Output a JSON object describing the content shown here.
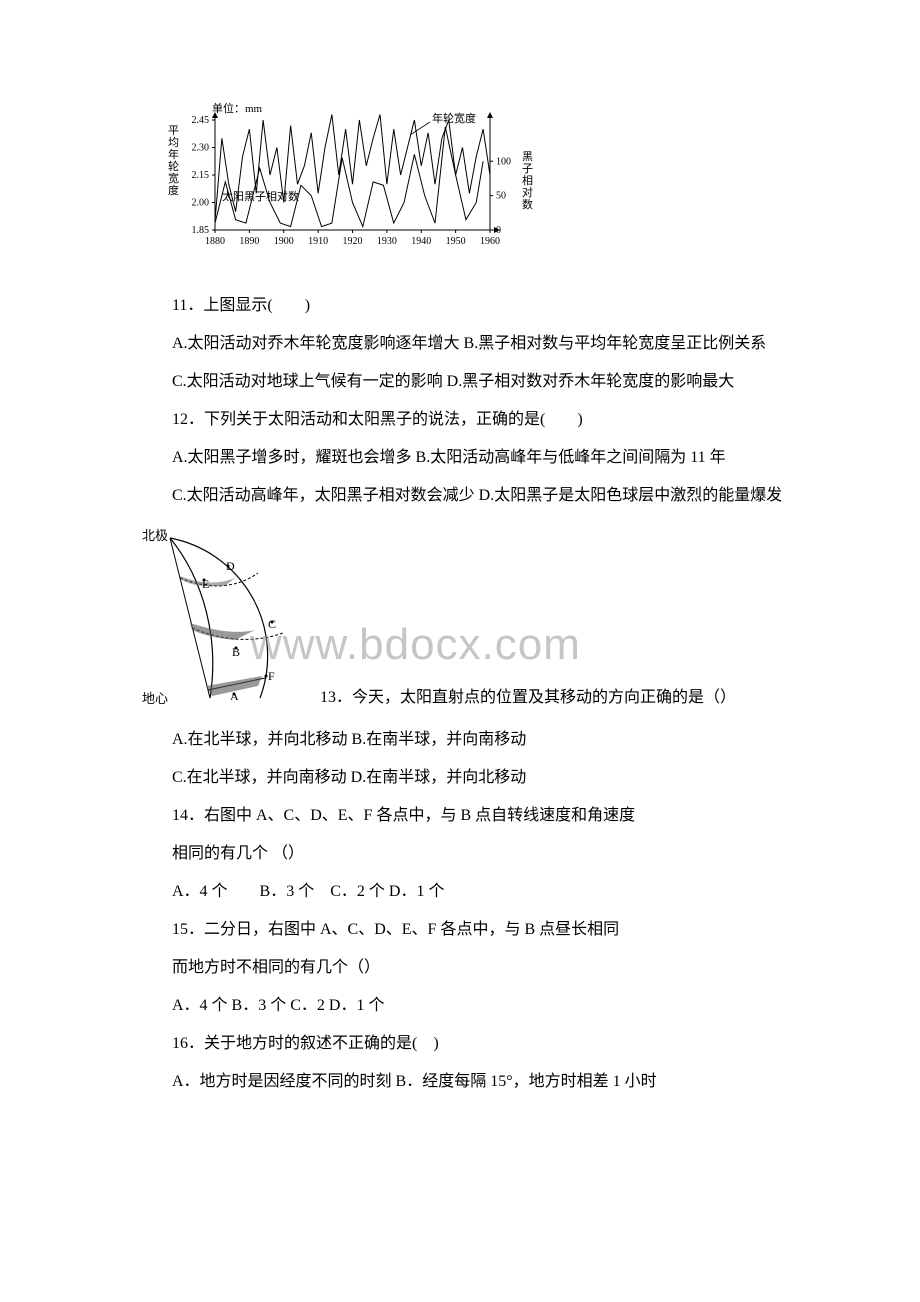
{
  "watermark": "www.bdocx.com",
  "chart": {
    "unit_label": "单位：mm",
    "y_axis_left_label": "平均年轮宽度",
    "y_axis_right_label": "黑子相对数",
    "y_left_ticks": [
      "2.45",
      "2.30",
      "2.15",
      "2.00",
      "1.85"
    ],
    "y_right_ticks": [
      "100",
      "50",
      "0"
    ],
    "x_ticks": [
      "1880",
      "1890",
      "1900",
      "1910",
      "1920",
      "1930",
      "1940",
      "1950",
      "1960"
    ],
    "label_ring": "年轮宽度",
    "label_sunspot": "太阳黑子相对数",
    "colors": {
      "axis": "#000000",
      "line": "#000000",
      "bg": "#ffffff"
    },
    "fontsize_axis": 10,
    "ring_series": [
      {
        "x": 1880,
        "y": 1.9
      },
      {
        "x": 1882,
        "y": 2.35
      },
      {
        "x": 1884,
        "y": 2.1
      },
      {
        "x": 1886,
        "y": 1.95
      },
      {
        "x": 1888,
        "y": 2.25
      },
      {
        "x": 1890,
        "y": 2.4
      },
      {
        "x": 1892,
        "y": 2.05
      },
      {
        "x": 1894,
        "y": 2.45
      },
      {
        "x": 1896,
        "y": 2.15
      },
      {
        "x": 1898,
        "y": 2.3
      },
      {
        "x": 1900,
        "y": 2.0
      },
      {
        "x": 1902,
        "y": 2.42
      },
      {
        "x": 1904,
        "y": 2.1
      },
      {
        "x": 1906,
        "y": 2.2
      },
      {
        "x": 1908,
        "y": 2.38
      },
      {
        "x": 1910,
        "y": 2.05
      },
      {
        "x": 1912,
        "y": 2.3
      },
      {
        "x": 1914,
        "y": 2.48
      },
      {
        "x": 1916,
        "y": 2.15
      },
      {
        "x": 1918,
        "y": 2.4
      },
      {
        "x": 1920,
        "y": 2.1
      },
      {
        "x": 1922,
        "y": 2.45
      },
      {
        "x": 1924,
        "y": 2.2
      },
      {
        "x": 1926,
        "y": 2.35
      },
      {
        "x": 1928,
        "y": 2.48
      },
      {
        "x": 1930,
        "y": 2.1
      },
      {
        "x": 1932,
        "y": 2.4
      },
      {
        "x": 1934,
        "y": 2.15
      },
      {
        "x": 1936,
        "y": 2.3
      },
      {
        "x": 1938,
        "y": 2.45
      },
      {
        "x": 1940,
        "y": 2.2
      },
      {
        "x": 1942,
        "y": 2.38
      },
      {
        "x": 1944,
        "y": 2.1
      },
      {
        "x": 1946,
        "y": 2.35
      },
      {
        "x": 1948,
        "y": 2.45
      },
      {
        "x": 1950,
        "y": 2.15
      },
      {
        "x": 1952,
        "y": 2.3
      },
      {
        "x": 1954,
        "y": 2.05
      },
      {
        "x": 1956,
        "y": 2.25
      },
      {
        "x": 1958,
        "y": 2.4
      },
      {
        "x": 1960,
        "y": 2.15
      }
    ],
    "sunspot_series": [
      {
        "x": 1880,
        "y": 10
      },
      {
        "x": 1883,
        "y": 70
      },
      {
        "x": 1886,
        "y": 15
      },
      {
        "x": 1889,
        "y": 10
      },
      {
        "x": 1893,
        "y": 90
      },
      {
        "x": 1896,
        "y": 40
      },
      {
        "x": 1899,
        "y": 10
      },
      {
        "x": 1902,
        "y": 5
      },
      {
        "x": 1905,
        "y": 65
      },
      {
        "x": 1908,
        "y": 50
      },
      {
        "x": 1911,
        "y": 5
      },
      {
        "x": 1914,
        "y": 10
      },
      {
        "x": 1917,
        "y": 105
      },
      {
        "x": 1920,
        "y": 40
      },
      {
        "x": 1923,
        "y": 5
      },
      {
        "x": 1926,
        "y": 70
      },
      {
        "x": 1929,
        "y": 65
      },
      {
        "x": 1932,
        "y": 10
      },
      {
        "x": 1935,
        "y": 40
      },
      {
        "x": 1938,
        "y": 110
      },
      {
        "x": 1941,
        "y": 50
      },
      {
        "x": 1944,
        "y": 10
      },
      {
        "x": 1947,
        "y": 150
      },
      {
        "x": 1950,
        "y": 80
      },
      {
        "x": 1953,
        "y": 15
      },
      {
        "x": 1956,
        "y": 40
      },
      {
        "x": 1958,
        "y": 100
      }
    ]
  },
  "q11": {
    "stem": "11．上图显示(　　)",
    "optAB": "A.太阳活动对乔木年轮宽度影响逐年增大 B.黑子相对数与平均年轮宽度呈正比例关系",
    "optCD": "C.太阳活动对地球上气候有一定的影响 D.黑子相对数对乔木年轮宽度的影响最大"
  },
  "q12": {
    "stem": "12．下列关于太阳活动和太阳黑子的说法，正确的是(　　)",
    "optAB": "A.太阳黑子增多时，耀斑也会增多 B.太阳活动高峰年与低峰年之间间隔为 11 年",
    "optCD": "C.太阳活动高峰年，太阳黑子相对数会减少 D.太阳黑子是太阳色球层中激烈的能量爆发"
  },
  "globe": {
    "label_north": "北极",
    "label_center": "地心",
    "pt_A": "A",
    "pt_B": "B",
    "pt_C": "C",
    "pt_D": "D",
    "pt_E": "E",
    "pt_F": "F"
  },
  "q13": {
    "stem": "13．今天，太阳直射点的位置及其移动的方向正确的是（）",
    "optAB": "A.在北半球，并向北移动 B.在南半球，并向南移动",
    "optCD": "C.在北半球，并向南移动 D.在南半球，并向北移动"
  },
  "q14": {
    "stem": "14．右图中 A、C、D、E、F 各点中，与 B 点自转线速度和角速度",
    "stem2": " 相同的有几个 （）",
    "opts": "A．4 个　　B．3 个　C．2 个 D．1 个"
  },
  "q15": {
    "stem": "15．二分日，右图中 A、C、D、E、F 各点中，与 B 点昼长相同",
    "stem2": " 而地方时不相同的有几个（）",
    "opts": " A．4 个 B．3 个 C．2 D．1 个"
  },
  "q16": {
    "stem": "16．关于地方时的叙述不正确的是(　)",
    "optAB": "A．地方时是因经度不同的时刻  B．经度每隔 15°，地方时相差 1 小时"
  }
}
